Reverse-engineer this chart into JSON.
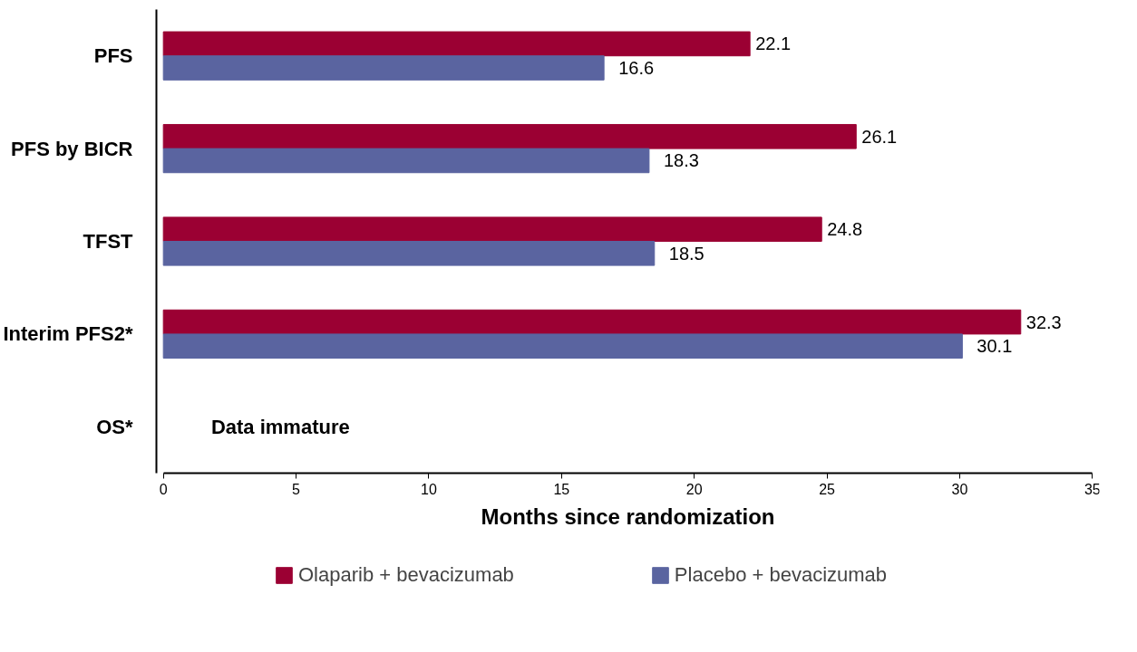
{
  "chart_data": {
    "type": "bar",
    "orientation": "horizontal",
    "xlabel": "Months since randomization",
    "categories": [
      "PFS",
      "PFS by BICR",
      "TFST",
      "Interim PFS2*",
      "OS*"
    ],
    "series": [
      {
        "name": "Olaparib + bevacizumab",
        "color": "#9b0033",
        "values": [
          22.1,
          26.1,
          24.8,
          32.3,
          null
        ]
      },
      {
        "name": "Placebo + bevacizumab",
        "color": "#5a64a0",
        "values": [
          16.6,
          18.3,
          18.5,
          30.1,
          null
        ]
      }
    ],
    "xlim": [
      0,
      35
    ],
    "xticks": [
      0,
      5,
      10,
      15,
      20,
      25,
      30,
      35
    ],
    "data_labels": true,
    "grid": false,
    "legend": "bottom",
    "annotations": [
      "Data immature"
    ]
  }
}
